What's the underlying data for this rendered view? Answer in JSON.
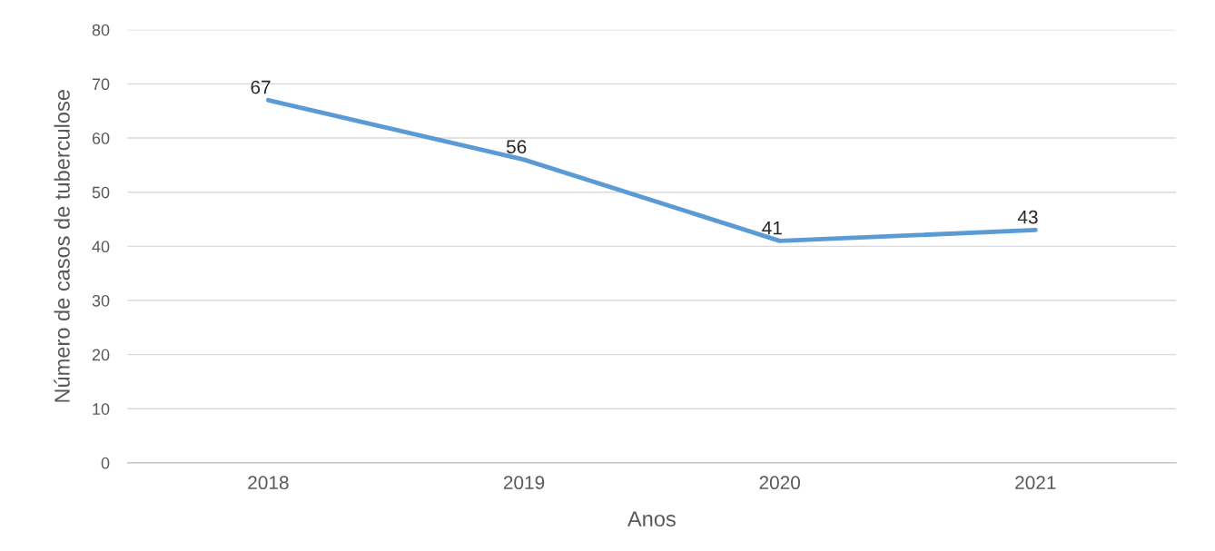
{
  "chart_data": {
    "type": "line",
    "xlabel": "Anos",
    "ylabel": "Número de casos de tuberculose",
    "categories": [
      "2018",
      "2019",
      "2020",
      "2021"
    ],
    "series": [
      {
        "color": "#5b9bd5",
        "values": [
          67,
          56,
          41,
          43
        ]
      }
    ],
    "ylim": [
      0,
      80
    ],
    "yticks": [
      0,
      10,
      20,
      30,
      40,
      50,
      60,
      70,
      80
    ],
    "grid": "y",
    "data_labels": true,
    "marker": "none",
    "line_style": "solid",
    "legend": false
  }
}
